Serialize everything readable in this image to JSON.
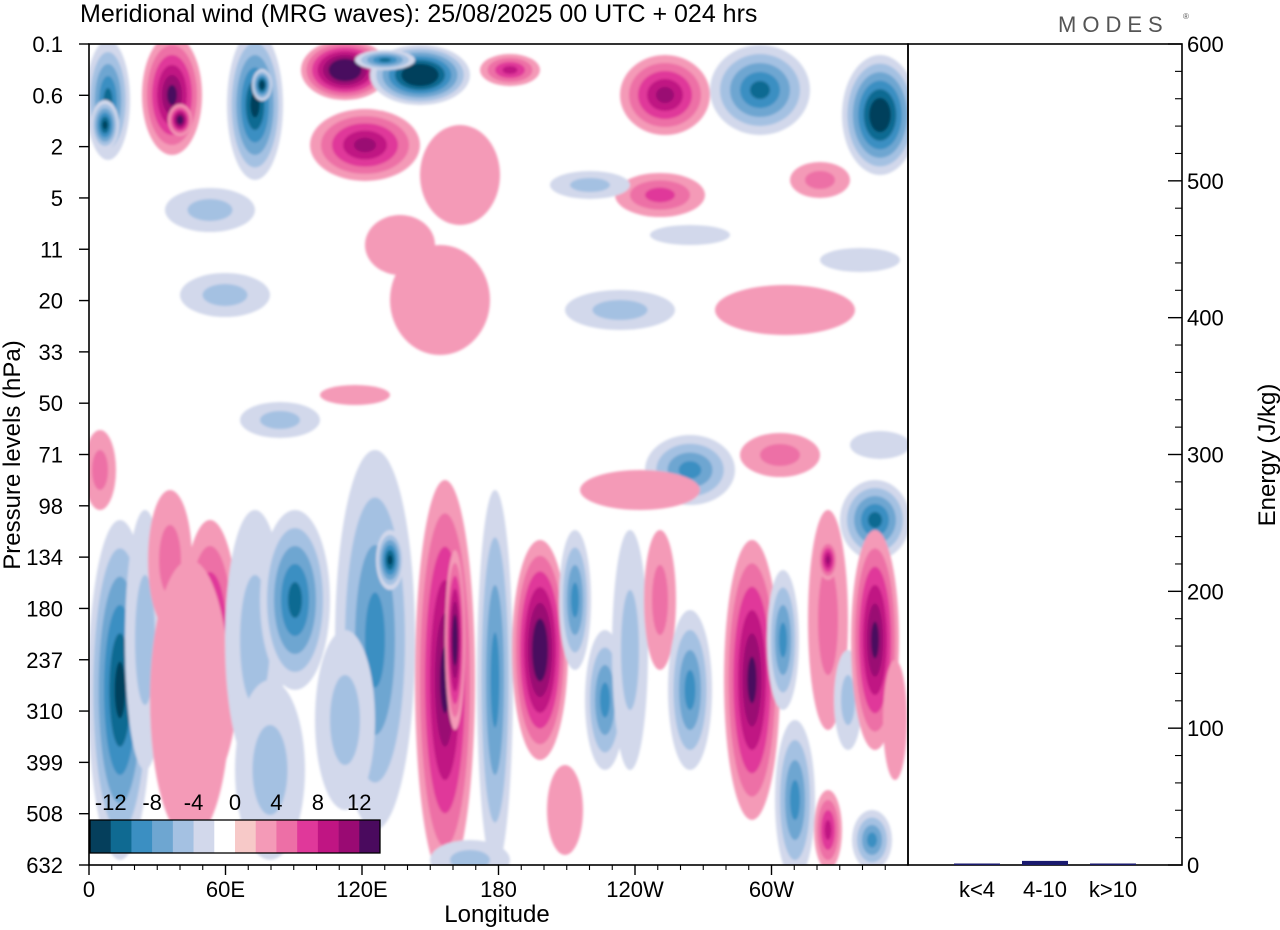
{
  "title": "Meridional wind (MRG waves):  25/08/2025  00 UTC  + 024 hrs",
  "brand": "MODES",
  "brand_mark": "®",
  "colors": {
    "background": "#ffffff",
    "axis": "#000000",
    "energy_bar": "#1a1a6e"
  },
  "chart_data": [
    {
      "type": "heatmap",
      "title": "Meridional wind (MRG waves):  25/08/2025  00 UTC  + 024 hrs",
      "xlabel": "Longitude",
      "ylabel": "Pressure levels (hPa)",
      "x_ticks": [
        "0",
        "60E",
        "120E",
        "180",
        "120W",
        "60W"
      ],
      "x_range_deg": [
        0,
        360
      ],
      "y_ticks": [
        "0.1",
        "0.6",
        "2",
        "5",
        "11",
        "20",
        "33",
        "50",
        "71",
        "98",
        "134",
        "180",
        "237",
        "310",
        "399",
        "508",
        "632"
      ],
      "colorbar": {
        "labels": [
          "-12",
          "-8",
          "-4",
          "0",
          "4",
          "8",
          "12"
        ],
        "levels": [
          -14,
          -12,
          -10,
          -8,
          -6,
          -4,
          -2,
          2,
          4,
          6,
          8,
          10,
          12,
          14
        ],
        "colors": [
          "#053f5c",
          "#0f6a92",
          "#3b8fc2",
          "#6ea6d1",
          "#a4c1e2",
          "#d2d8eb",
          "#ffffff",
          "#f7c9c8",
          "#f49ab7",
          "#ed6fa6",
          "#e0389a",
          "#c01583",
          "#9a0a73",
          "#4a0a5e"
        ]
      },
      "features": [
        {
          "lon": 5,
          "level": "0.6-2",
          "sign": "negative",
          "peak": -12
        },
        {
          "lon": 38,
          "level": "0.6",
          "sign": "positive",
          "peak": 12
        },
        {
          "lon": 72,
          "level": "0.6-2",
          "sign": "negative",
          "peak": -12
        },
        {
          "lon": 120,
          "level": "0.1-0.6",
          "sign": "positive",
          "peak": 16
        },
        {
          "lon": 155,
          "level": "0.1",
          "sign": "negative",
          "peak": -16
        },
        {
          "lon": 122,
          "level": "2",
          "sign": "positive",
          "peak": 10
        },
        {
          "lon": 330,
          "level": "0.6-2",
          "sign": "negative",
          "peak": -14
        },
        {
          "lon": 263,
          "level": "0.6",
          "sign": "positive",
          "peak": 8
        },
        {
          "lon": 155,
          "level": "237-399",
          "sign": "positive",
          "peak": 10
        },
        {
          "lon": 197,
          "level": "237",
          "sign": "positive",
          "peak": 12
        },
        {
          "lon": 317,
          "level": "237",
          "sign": "positive",
          "peak": 12
        }
      ]
    },
    {
      "type": "bar",
      "ylabel": "Energy (J/kg)",
      "categories": [
        "k<4",
        "4-10",
        "k>10"
      ],
      "values": [
        1,
        3,
        0.5
      ],
      "y_ticks": [
        "0",
        "100",
        "200",
        "300",
        "400",
        "500",
        "600"
      ],
      "ylim": [
        0,
        600
      ]
    }
  ]
}
